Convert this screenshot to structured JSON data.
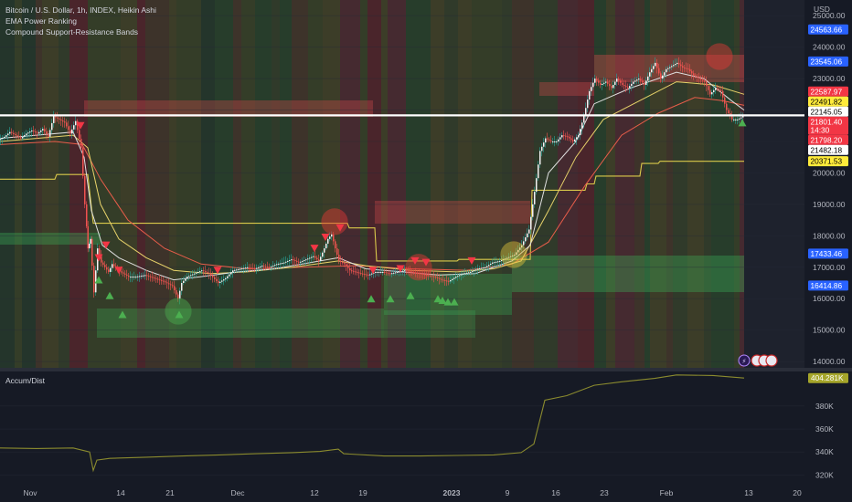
{
  "legend": {
    "symbol_line": "Bitcoin / U.S. Dollar, 1h, INDEX, Heikin Ashi",
    "indicator_1": "EMA Power Ranking",
    "indicator_2": "Compound Support-Resistance Bands"
  },
  "colors": {
    "background": "#161a25",
    "grid": "#262b37",
    "text": "#b2b5be",
    "candle_up": "#26a69a",
    "candle_down": "#ef5350",
    "sr_line": "#d9c94a",
    "ad_line": "#8b8b2e",
    "white_line": "#ffffff"
  },
  "chart_data": [
    {
      "type": "line",
      "title": "",
      "currency": "USD",
      "x_ticks": [
        "Nov",
        "14",
        "21",
        "Dec",
        "12",
        "19",
        "2023",
        "9",
        "16",
        "23",
        "Feb",
        "13",
        "20"
      ],
      "y_ticks": [
        14000,
        15000,
        16000,
        17000,
        18000,
        19000,
        20000,
        21000,
        22000,
        23000,
        24000,
        25000
      ],
      "y_tick_labels": [
        "14000.00",
        "15000.00",
        "16000.00",
        "17000.00",
        "18000.00",
        "19000.00",
        "20000.00",
        "21000.00",
        "22000.00",
        "23000.00",
        "24000.00",
        "25000.00"
      ],
      "ylim": [
        13800,
        25500
      ],
      "price_labels": [
        {
          "value": 24563.66,
          "text": "24563.66",
          "bg": "#2962ff",
          "fg": "#ffffff"
        },
        {
          "value": 23545.06,
          "text": "23545.06",
          "bg": "#2962ff",
          "fg": "#ffffff"
        },
        {
          "value": 22587.97,
          "text": "22587.97",
          "bg": "#f23645",
          "fg": "#ffffff"
        },
        {
          "value": 22491.82,
          "text": "22491.82",
          "bg": "#ffeb3b",
          "fg": "#000000"
        },
        {
          "value": 22145.05,
          "text": "22145.05",
          "bg": "#ffffff",
          "fg": "#000000"
        },
        {
          "value": 21801.4,
          "text": "21801.40",
          "sub": "14:30",
          "bg": "#f23645",
          "fg": "#ffffff"
        },
        {
          "value": 21798.2,
          "text": "21798.20",
          "bg": "#f23645",
          "fg": "#ffffff"
        },
        {
          "value": 21482.18,
          "text": "21482.18",
          "bg": "#ffffff",
          "fg": "#000000"
        },
        {
          "value": 20371.53,
          "text": "20371.53",
          "bg": "#ffeb3b",
          "fg": "#000000"
        },
        {
          "value": 17433.46,
          "text": "17433.46",
          "bg": "#2962ff",
          "fg": "#ffffff"
        },
        {
          "value": 16414.86,
          "text": "16414.86",
          "bg": "#2962ff",
          "fg": "#ffffff"
        }
      ],
      "horizontal_line": 21830,
      "price_series": [
        [
          0,
          21050
        ],
        [
          6,
          21150
        ],
        [
          12,
          21300
        ],
        [
          18,
          21200
        ],
        [
          24,
          21100
        ],
        [
          30,
          21250
        ],
        [
          36,
          21350
        ],
        [
          42,
          21250
        ],
        [
          48,
          21400
        ],
        [
          54,
          21150
        ],
        [
          60,
          21800
        ],
        [
          66,
          21700
        ],
        [
          72,
          21600
        ],
        [
          78,
          21250
        ],
        [
          84,
          21650
        ],
        [
          90,
          20800
        ],
        [
          94,
          19000
        ],
        [
          97,
          17600
        ],
        [
          100,
          17900
        ],
        [
          104,
          16200
        ],
        [
          108,
          17600
        ],
        [
          112,
          17150
        ],
        [
          116,
          17000
        ],
        [
          120,
          16850
        ],
        [
          124,
          17100
        ],
        [
          130,
          16900
        ],
        [
          136,
          16800
        ],
        [
          142,
          16700
        ],
        [
          150,
          16700
        ],
        [
          160,
          16750
        ],
        [
          170,
          16650
        ],
        [
          180,
          16550
        ],
        [
          190,
          16400
        ],
        [
          196,
          16000
        ],
        [
          200,
          16500
        ],
        [
          206,
          16700
        ],
        [
          214,
          16800
        ],
        [
          222,
          16900
        ],
        [
          230,
          16800
        ],
        [
          240,
          16500
        ],
        [
          248,
          16650
        ],
        [
          256,
          16900
        ],
        [
          264,
          16950
        ],
        [
          272,
          17000
        ],
        [
          280,
          16950
        ],
        [
          288,
          17050
        ],
        [
          296,
          17000
        ],
        [
          304,
          17100
        ],
        [
          312,
          17150
        ],
        [
          320,
          17250
        ],
        [
          328,
          17150
        ],
        [
          336,
          17250
        ],
        [
          344,
          17350
        ],
        [
          350,
          17200
        ],
        [
          356,
          17600
        ],
        [
          360,
          17900
        ],
        [
          364,
          18050
        ],
        [
          368,
          17600
        ],
        [
          372,
          17200
        ],
        [
          378,
          17100
        ],
        [
          384,
          16900
        ],
        [
          390,
          16850
        ],
        [
          396,
          16800
        ],
        [
          404,
          16750
        ],
        [
          412,
          16850
        ],
        [
          420,
          16850
        ],
        [
          428,
          16800
        ],
        [
          436,
          16850
        ],
        [
          444,
          16900
        ],
        [
          452,
          16850
        ],
        [
          460,
          16800
        ],
        [
          468,
          16750
        ],
        [
          476,
          16700
        ],
        [
          484,
          16600
        ],
        [
          492,
          16550
        ],
        [
          500,
          16700
        ],
        [
          508,
          16800
        ],
        [
          516,
          16850
        ],
        [
          524,
          16950
        ],
        [
          532,
          17000
        ],
        [
          540,
          17150
        ],
        [
          548,
          17200
        ],
        [
          556,
          17300
        ],
        [
          564,
          17400
        ],
        [
          572,
          17700
        ],
        [
          580,
          18200
        ],
        [
          586,
          19400
        ],
        [
          592,
          20700
        ],
        [
          598,
          21100
        ],
        [
          604,
          21000
        ],
        [
          610,
          21000
        ],
        [
          616,
          21200
        ],
        [
          622,
          21150
        ],
        [
          628,
          21000
        ],
        [
          634,
          21200
        ],
        [
          640,
          21800
        ],
        [
          646,
          22600
        ],
        [
          652,
          23000
        ],
        [
          658,
          22800
        ],
        [
          664,
          22900
        ],
        [
          670,
          22700
        ],
        [
          676,
          23000
        ],
        [
          682,
          22800
        ],
        [
          688,
          22700
        ],
        [
          694,
          22900
        ],
        [
          700,
          23000
        ],
        [
          706,
          22800
        ],
        [
          712,
          23200
        ],
        [
          718,
          23500
        ],
        [
          724,
          23000
        ],
        [
          730,
          23300
        ],
        [
          736,
          23400
        ],
        [
          742,
          23500
        ],
        [
          748,
          23350
        ],
        [
          754,
          23300
        ],
        [
          760,
          23100
        ],
        [
          766,
          23000
        ],
        [
          772,
          22900
        ],
        [
          778,
          22500
        ],
        [
          784,
          22700
        ],
        [
          790,
          22600
        ],
        [
          796,
          22000
        ],
        [
          802,
          21700
        ],
        [
          808,
          21700
        ],
        [
          814,
          21800
        ]
      ],
      "ema_fast": [
        [
          0,
          21100
        ],
        [
          40,
          21200
        ],
        [
          80,
          21300
        ],
        [
          92,
          20500
        ],
        [
          100,
          18800
        ],
        [
          112,
          17700
        ],
        [
          130,
          17300
        ],
        [
          160,
          16900
        ],
        [
          190,
          16600
        ],
        [
          220,
          16700
        ],
        [
          260,
          16850
        ],
        [
          300,
          16950
        ],
        [
          340,
          17150
        ],
        [
          370,
          17300
        ],
        [
          400,
          16950
        ],
        [
          440,
          16850
        ],
        [
          480,
          16750
        ],
        [
          520,
          16800
        ],
        [
          560,
          17200
        ],
        [
          580,
          17700
        ],
        [
          600,
          20000
        ],
        [
          630,
          21000
        ],
        [
          650,
          22200
        ],
        [
          690,
          22700
        ],
        [
          740,
          23200
        ],
        [
          770,
          23000
        ],
        [
          800,
          22300
        ],
        [
          814,
          22000
        ]
      ],
      "ema_mid": [
        [
          0,
          21000
        ],
        [
          40,
          21100
        ],
        [
          80,
          21200
        ],
        [
          96,
          20800
        ],
        [
          110,
          19000
        ],
        [
          130,
          17900
        ],
        [
          160,
          17300
        ],
        [
          190,
          16900
        ],
        [
          230,
          16800
        ],
        [
          270,
          16850
        ],
        [
          320,
          17000
        ],
        [
          370,
          17200
        ],
        [
          400,
          17050
        ],
        [
          450,
          16900
        ],
        [
          500,
          16850
        ],
        [
          540,
          16950
        ],
        [
          570,
          17200
        ],
        [
          600,
          18800
        ],
        [
          630,
          20500
        ],
        [
          660,
          21700
        ],
        [
          700,
          22300
        ],
        [
          740,
          22900
        ],
        [
          780,
          22800
        ],
        [
          814,
          22500
        ]
      ],
      "ema_slow": [
        [
          0,
          20900
        ],
        [
          60,
          21000
        ],
        [
          90,
          20900
        ],
        [
          110,
          19800
        ],
        [
          140,
          18500
        ],
        [
          180,
          17600
        ],
        [
          220,
          17100
        ],
        [
          270,
          16950
        ],
        [
          330,
          17000
        ],
        [
          390,
          17050
        ],
        [
          450,
          16950
        ],
        [
          510,
          16900
        ],
        [
          560,
          17100
        ],
        [
          600,
          17800
        ],
        [
          640,
          19600
        ],
        [
          680,
          21200
        ],
        [
          720,
          21900
        ],
        [
          760,
          22400
        ],
        [
          790,
          22300
        ],
        [
          814,
          22150
        ]
      ],
      "sr_line": [
        [
          0,
          19800
        ],
        [
          20,
          19800
        ],
        [
          60,
          19800
        ],
        [
          62,
          19950
        ],
        [
          92,
          19950
        ],
        [
          96,
          19950
        ],
        [
          102,
          18400
        ],
        [
          300,
          18400
        ],
        [
          380,
          18400
        ],
        [
          382,
          18250
        ],
        [
          410,
          18250
        ],
        [
          412,
          17200
        ],
        [
          500,
          17200
        ],
        [
          502,
          17250
        ],
        [
          580,
          17250
        ],
        [
          582,
          19450
        ],
        [
          640,
          19450
        ],
        [
          642,
          19650
        ],
        [
          650,
          19650
        ],
        [
          652,
          19900
        ],
        [
          700,
          19900
        ],
        [
          702,
          20300
        ],
        [
          720,
          20300
        ],
        [
          722,
          20371
        ],
        [
          814,
          20371
        ]
      ],
      "buy_signals": [
        [
          108,
          16600
        ],
        [
          120,
          16100
        ],
        [
          134,
          15500
        ],
        [
          196,
          15500
        ],
        [
          406,
          16000
        ],
        [
          427,
          16000
        ],
        [
          449,
          16100
        ],
        [
          479,
          16000
        ],
        [
          484,
          15950
        ],
        [
          490,
          15900
        ],
        [
          497,
          15900
        ],
        [
          812,
          21600
        ]
      ],
      "sell_signals": [
        [
          88,
          21500
        ],
        [
          108,
          17300
        ],
        [
          116,
          17700
        ],
        [
          130,
          16900
        ],
        [
          238,
          16900
        ],
        [
          344,
          17600
        ],
        [
          356,
          17950
        ],
        [
          372,
          18250
        ],
        [
          408,
          16900
        ],
        [
          438,
          16950
        ],
        [
          454,
          17200
        ],
        [
          466,
          17150
        ],
        [
          516,
          17200
        ]
      ],
      "circles": [
        {
          "x": 195,
          "y": 15600,
          "color": "green"
        },
        {
          "x": 366,
          "y": 18450,
          "color": "red"
        },
        {
          "x": 458,
          "y": 17000,
          "color": "red"
        },
        {
          "x": 562,
          "y": 17400,
          "color": "yellow"
        },
        {
          "x": 787,
          "y": 23700,
          "color": "red"
        }
      ]
    },
    {
      "type": "line",
      "title": "Accum/Dist",
      "y_ticks": [
        320,
        340,
        360,
        380
      ],
      "y_tick_labels": [
        "320K",
        "340K",
        "360K",
        "380K"
      ],
      "ylim": [
        314,
        410
      ],
      "last_value_label": "404.281K",
      "last_value": 404.281,
      "series": [
        [
          0,
          343.5
        ],
        [
          40,
          343
        ],
        [
          80,
          343.5
        ],
        [
          98,
          340
        ],
        [
          102,
          324
        ],
        [
          106,
          333
        ],
        [
          120,
          334.5
        ],
        [
          160,
          335.5
        ],
        [
          200,
          336.5
        ],
        [
          240,
          337.5
        ],
        [
          280,
          338.5
        ],
        [
          320,
          339.5
        ],
        [
          350,
          340.5
        ],
        [
          370,
          342.5
        ],
        [
          376,
          338.5
        ],
        [
          420,
          336.5
        ],
        [
          460,
          336.5
        ],
        [
          500,
          337
        ],
        [
          540,
          337.5
        ],
        [
          570,
          339.5
        ],
        [
          584,
          347
        ],
        [
          596,
          385
        ],
        [
          620,
          389
        ],
        [
          650,
          398
        ],
        [
          680,
          401
        ],
        [
          716,
          404
        ],
        [
          740,
          407
        ],
        [
          780,
          406.5
        ],
        [
          814,
          404.3
        ]
      ]
    }
  ],
  "flags_label": "🇺🇸"
}
